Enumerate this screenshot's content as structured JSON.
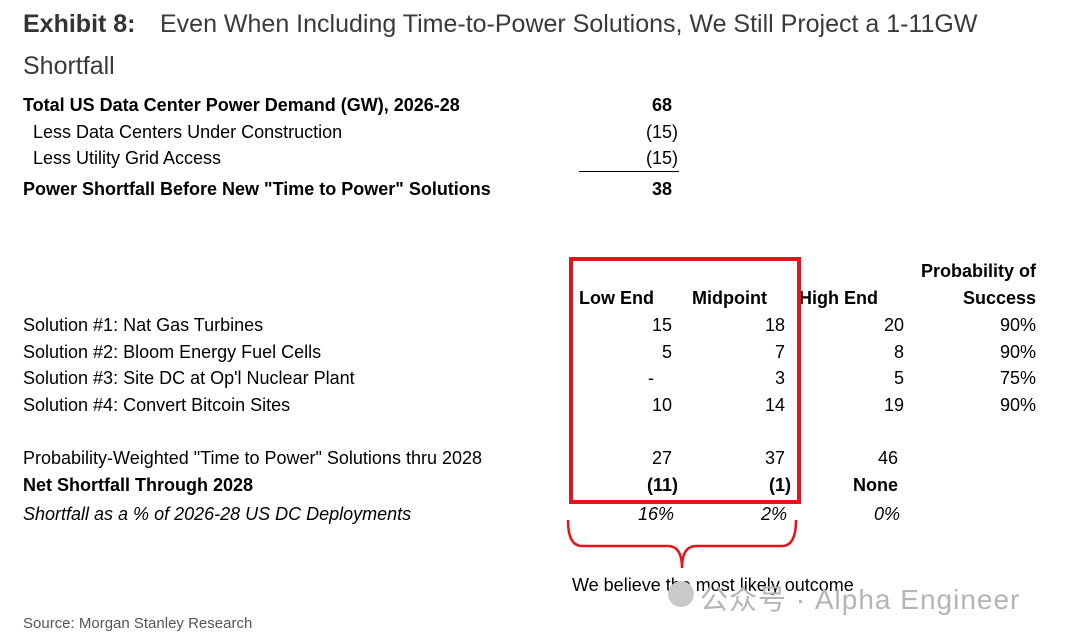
{
  "header": {
    "exhibit_label": "Exhibit 8:",
    "title_line1": "Even When Including Time-to-Power Solutions, We Still Project a 1-11GW",
    "title_line2": "Shortfall"
  },
  "demand": {
    "total_label": "Total US Data Center Power Demand (GW), 2026-28",
    "total_value": "68",
    "less1_label": "Less Data Centers Under Construction",
    "less1_value": "(15)",
    "less2_label": "Less Utility Grid Access",
    "less2_value": "(15)",
    "shortfall_label": "Power Shortfall Before New \"Time to Power\" Solutions",
    "shortfall_value": "38"
  },
  "table": {
    "col_low": "Low End",
    "col_mid": "Midpoint",
    "col_high": "High End",
    "col_prob_line1": "Probability of",
    "col_prob_line2": "Success",
    "rows": [
      {
        "label": "Solution #1: Nat Gas Turbines",
        "low": "15",
        "mid": "18",
        "high": "20",
        "prob": "90%"
      },
      {
        "label": "Solution #2: Bloom Energy Fuel Cells",
        "low": "5",
        "mid": "7",
        "high": "8",
        "prob": "90%"
      },
      {
        "label": "Solution #3: Site DC at Op'l Nuclear Plant",
        "low": "-",
        "mid": "3",
        "high": "5",
        "prob": "75%"
      },
      {
        "label": "Solution #4: Convert Bitcoin Sites",
        "low": "10",
        "mid": "14",
        "high": "19",
        "prob": "90%"
      }
    ],
    "weighted": {
      "label": "Probability-Weighted \"Time to Power\" Solutions thru 2028",
      "low": "27",
      "mid": "37",
      "high": "46"
    },
    "net": {
      "label": "Net Shortfall Through 2028",
      "low": "(11)",
      "mid": "(1)",
      "high": "None"
    },
    "pct": {
      "label": "Shortfall as a % of 2026-28 US DC Deployments",
      "low": "16%",
      "mid": "2%",
      "high": "0%"
    }
  },
  "annotation": {
    "note": "We believe the most likely outcome",
    "highlight_color": "#e3141b"
  },
  "watermark": "公众号 · Alpha Engineer",
  "source": "Source: Morgan Stanley Research"
}
